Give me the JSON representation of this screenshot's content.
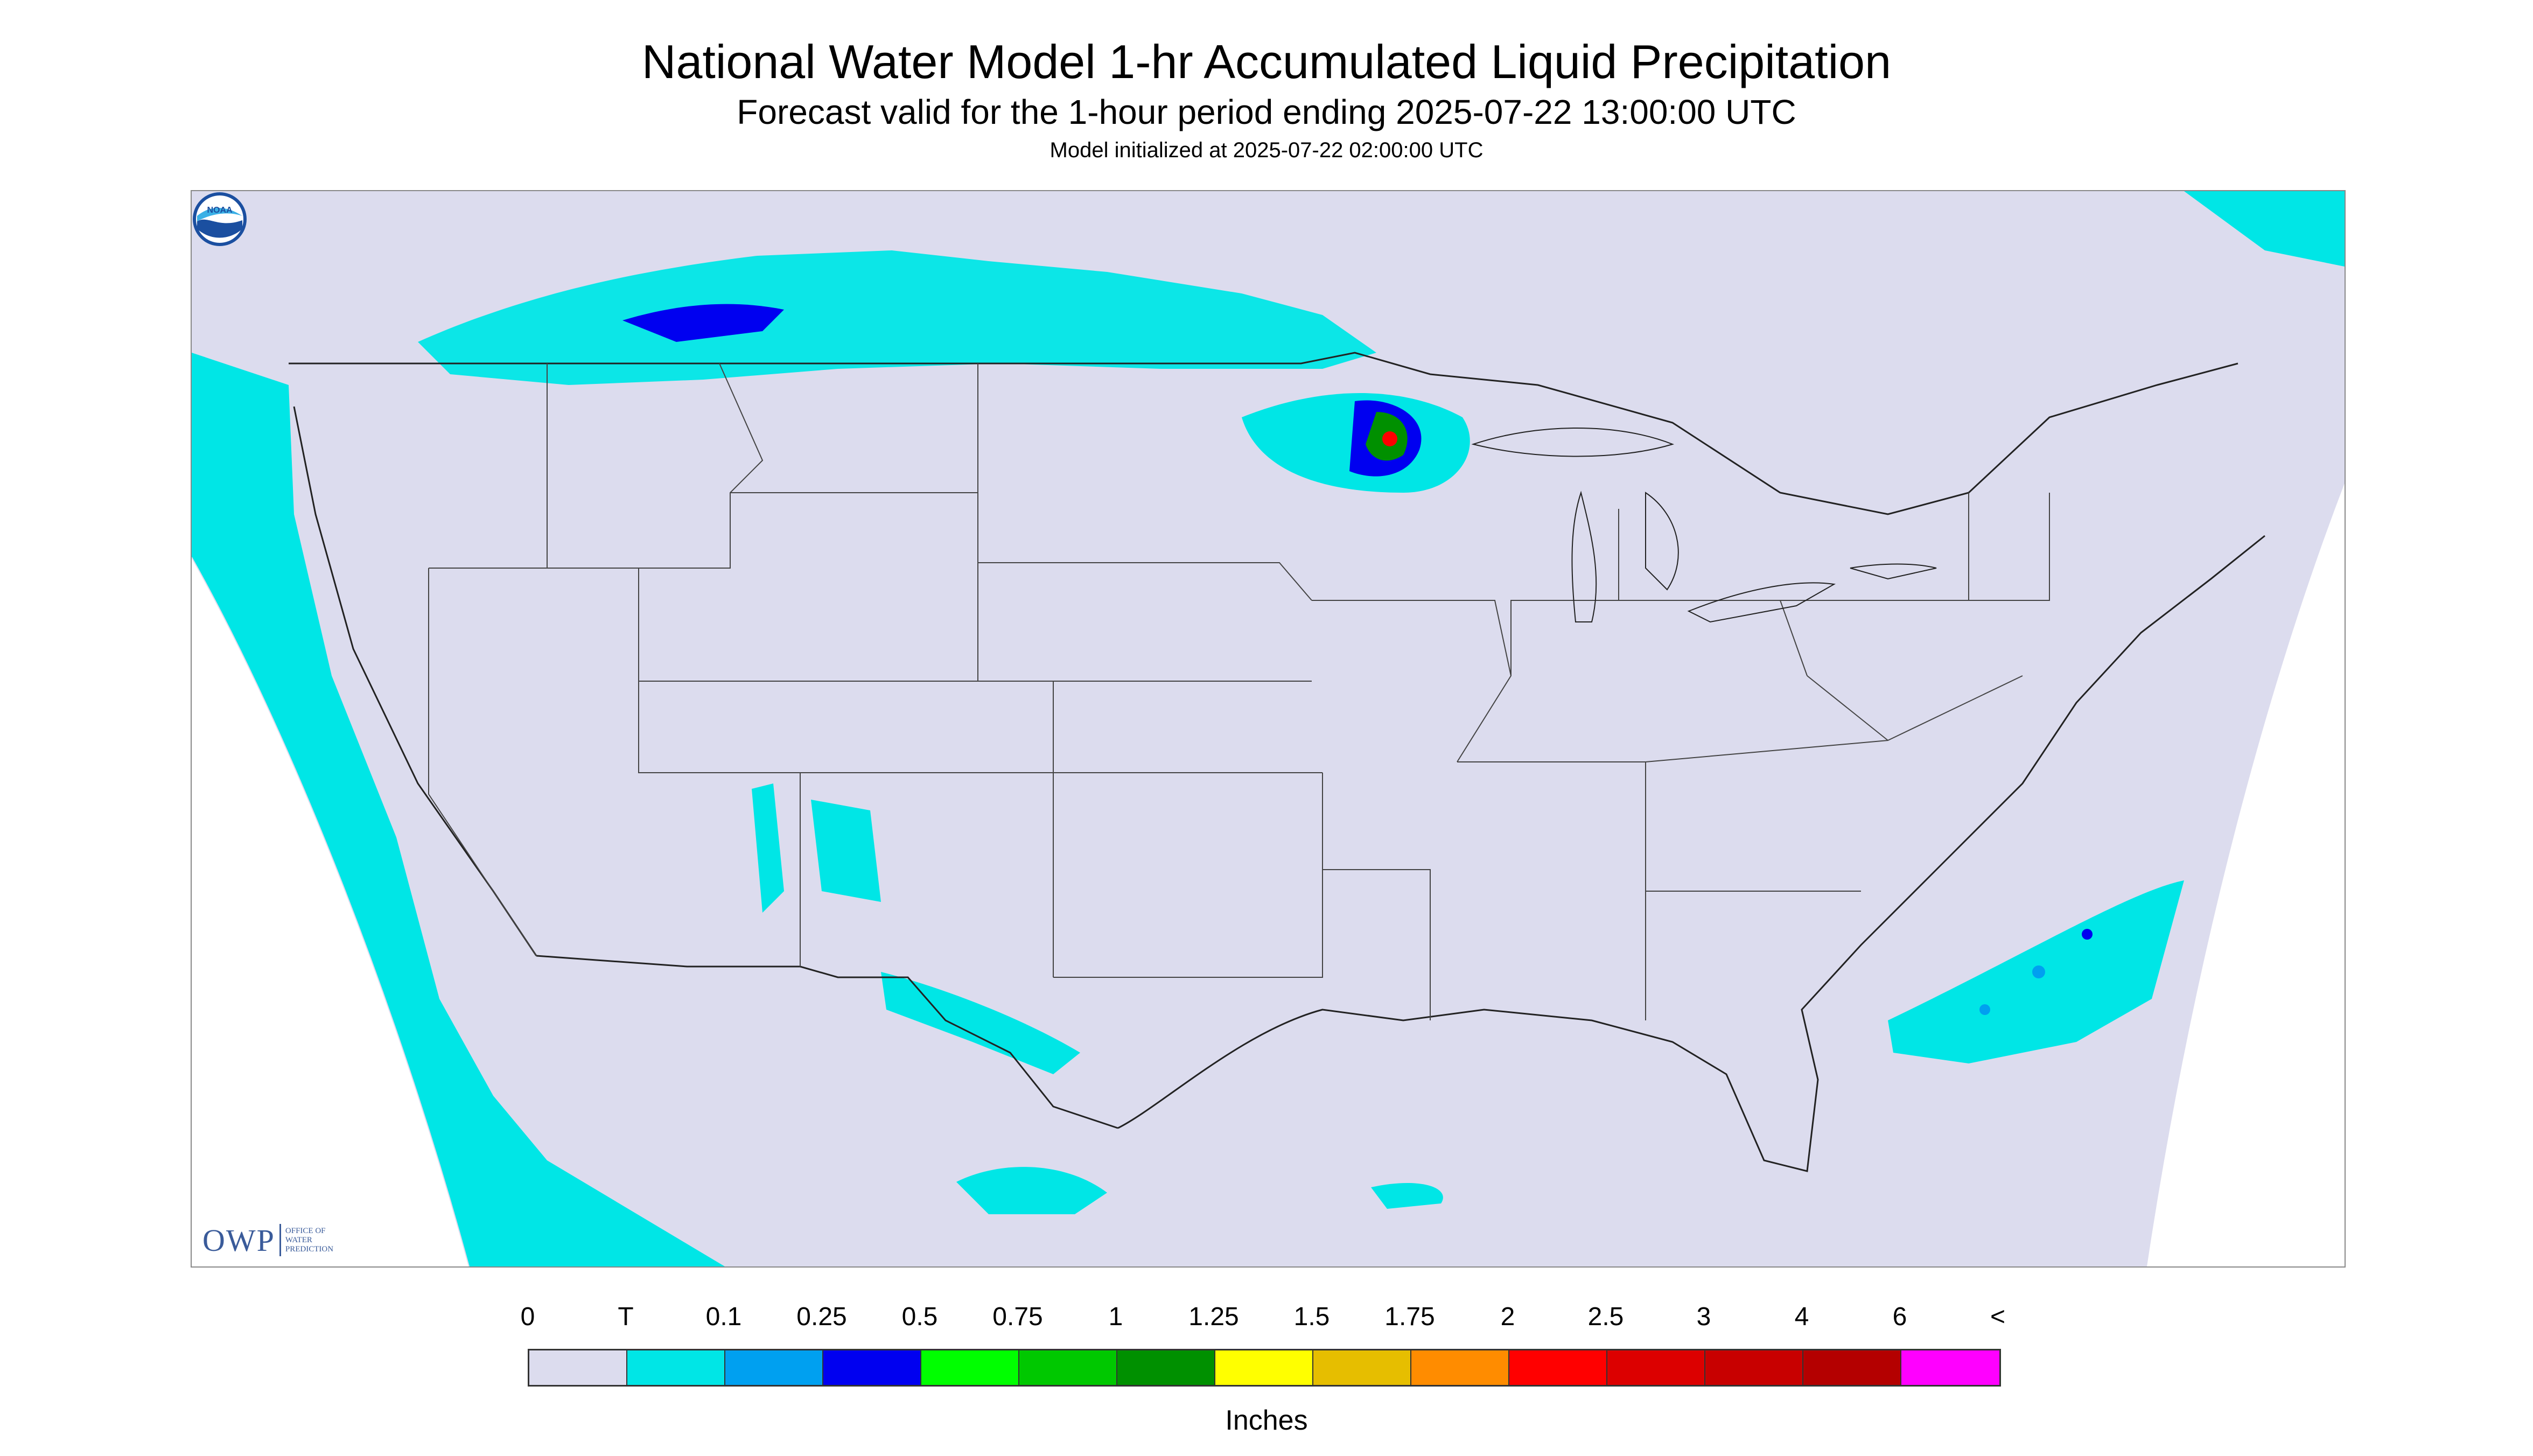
{
  "header": {
    "title": "National Water Model 1-hr Accumulated Liquid Precipitation",
    "subtitle": "Forecast valid for the 1-hour period ending 2025-07-22 13:00:00 UTC",
    "init": "Model initialized at 2025-07-22 02:00:00 UTC"
  },
  "map": {
    "background_color": "#dcdcee",
    "outside_domain_color": "#ffffff",
    "border_color": "#333333"
  },
  "logos": {
    "owp_main": "OWP",
    "owp_sub_1": "OFFICE OF",
    "owp_sub_2": "WATER",
    "owp_sub_3": "PREDICTION",
    "noaa_label": "NOAA"
  },
  "legend": {
    "labels": [
      "0",
      "T",
      "0.1",
      "0.25",
      "0.5",
      "0.75",
      "1",
      "1.25",
      "1.5",
      "1.75",
      "2",
      "2.5",
      "3",
      "4",
      "6",
      "<"
    ],
    "colors": [
      "#dcdcee",
      "#00e6e6",
      "#00a0f0",
      "#0000f0",
      "#00ff00",
      "#00c800",
      "#009000",
      "#ffff00",
      "#e6be00",
      "#ff8c00",
      "#ff0000",
      "#dc0000",
      "#c80000",
      "#b40000",
      "#ff00ff",
      "#9c55c8"
    ],
    "units": "Inches"
  }
}
